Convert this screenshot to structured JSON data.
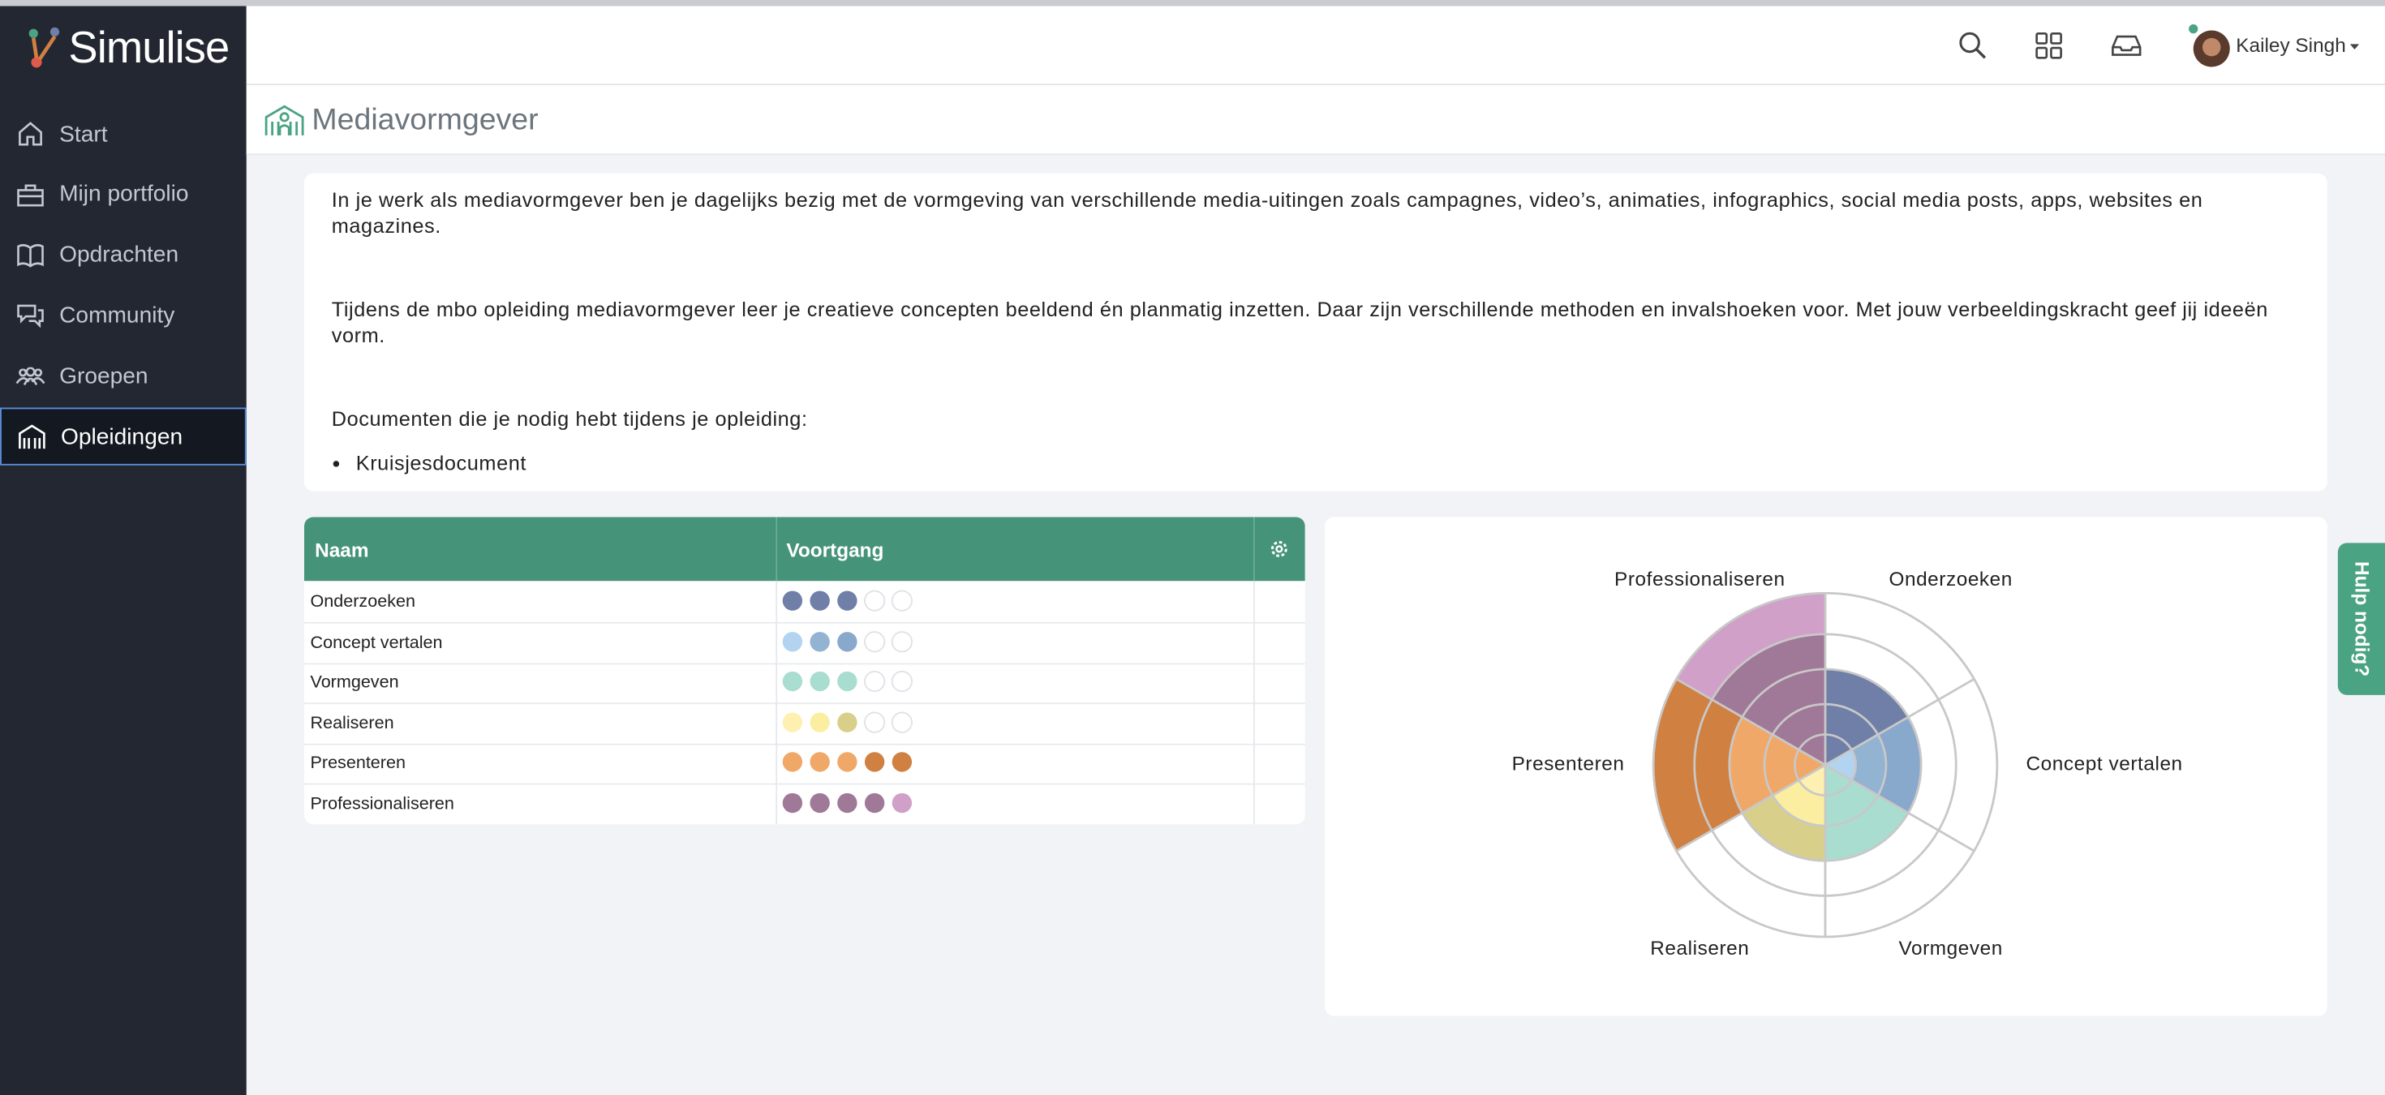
{
  "brand": "Simulise",
  "nav": [
    "Start",
    "Mijn portfolio",
    "Opdrachten",
    "Community",
    "Groepen",
    "Opleidingen"
  ],
  "active_nav": 5,
  "user": "Kailey Singh",
  "page_title": "Mediavormgever",
  "intro": {
    "paragraphs": [
      "In je werk als mediavormgever ben je dagelijks bezig met de vormgeving van verschillende media-uitingen zoals campagnes, video’s, animaties, infographics, social media posts, apps, websites en magazines.",
      "Tijdens de mbo opleiding mediavormgever leer je creatieve concepten beeldend én planmatig inzetten. Daar zijn verschillende methoden en invalshoeken voor. Met jouw verbeeldingskracht geef jij ideeën vorm.",
      "Documenten die je nodig hebt tijdens je opleiding:"
    ],
    "list": [
      "Kruisjesdocument"
    ]
  },
  "table": {
    "headers": [
      "Naam",
      "Voortgang"
    ]
  },
  "help": "Hulp nodig?",
  "chart_data": {
    "type": "polar-area",
    "categories": [
      "Onderzoeken",
      "Concept vertalen",
      "Vormgeven",
      "Realiseren",
      "Presenteren",
      "Professionaliseren"
    ],
    "values": [
      3,
      3,
      3,
      3,
      5,
      5
    ],
    "rlim": [
      0,
      5
    ],
    "level_colors": [
      [
        "#6f7fa8",
        "#6f7fa8",
        "#6f7fa8"
      ],
      [
        "#b3d4f0",
        "#93b3d3",
        "#88a8cc"
      ],
      [
        "#a8ddd0",
        "#a8ddd0",
        "#a8ddd0"
      ],
      [
        "#fdf0b0",
        "#fbeea0",
        "#d8cf8a"
      ],
      [
        "#f0a868",
        "#f0a868",
        "#f0a868",
        "#d08040",
        "#d08040"
      ],
      [
        "#a07898",
        "#a07898",
        "#a07898",
        "#a07898",
        "#d0a0c8"
      ]
    ]
  }
}
